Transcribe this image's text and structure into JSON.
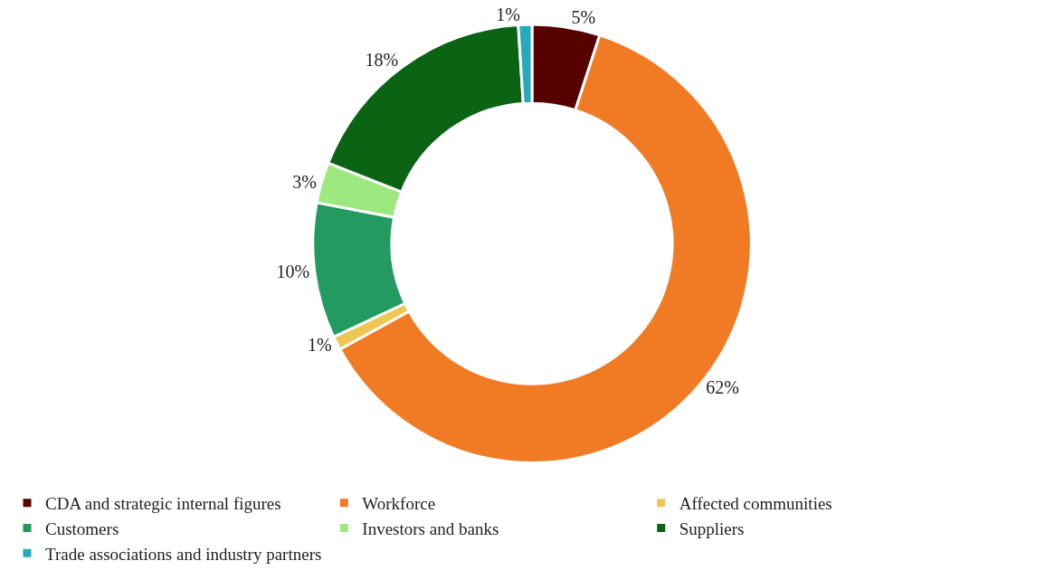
{
  "chart_data": {
    "type": "donut",
    "categories": [
      "CDA and strategic internal figures",
      "Workforce",
      "Affected communities",
      "Customers",
      "Investors and banks",
      "Suppliers",
      "Trade associations and industry partners"
    ],
    "values": [
      5,
      62,
      1,
      10,
      3,
      18,
      1
    ],
    "value_labels": [
      "5%",
      "62%",
      "1%",
      "10%",
      "3%",
      "18%",
      "1%"
    ],
    "colors": [
      "#570000",
      "#f07b24",
      "#eec653",
      "#239a5f",
      "#9de87f",
      "#0b6314",
      "#23abbd"
    ],
    "legend": "bottom"
  }
}
